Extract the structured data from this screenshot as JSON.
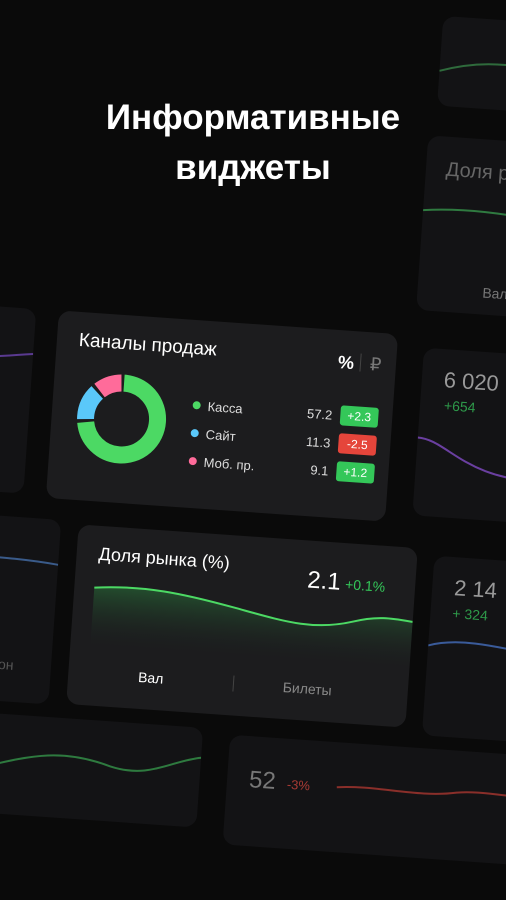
{
  "headline": [
    "Информативные",
    "виджеты"
  ],
  "sales_widget": {
    "title": "Каналы продаж",
    "toggle": [
      "%",
      "₽"
    ],
    "channels": [
      {
        "name": "Касса",
        "color": "#4cd964",
        "value": 57.2,
        "change": "+2.3",
        "change_color": "#34c759"
      },
      {
        "name": "Сайт",
        "color": "#5ac8fa",
        "value": 11.3,
        "change": "-2.5",
        "change_color": "#e5453b"
      },
      {
        "name": "Моб. пр.",
        "color": "#ff6b9a",
        "value": 9.1,
        "change": "+1.2",
        "change_color": "#34c759"
      }
    ]
  },
  "market_widget": {
    "title": "Доля рынка (%)",
    "value": "2.1",
    "change": "+0.1%",
    "tabs": [
      "Вал",
      "Билеты"
    ]
  },
  "background_cards": {
    "top_right_title": "Доля р",
    "top_right_tab": "Вал",
    "right_value": "6 020",
    "right_change": "+654",
    "lower_right_value": "2 14",
    "lower_right_change": "+ 324",
    "left_text": "он",
    "bottom_value": "52",
    "bottom_change": "-3%"
  }
}
